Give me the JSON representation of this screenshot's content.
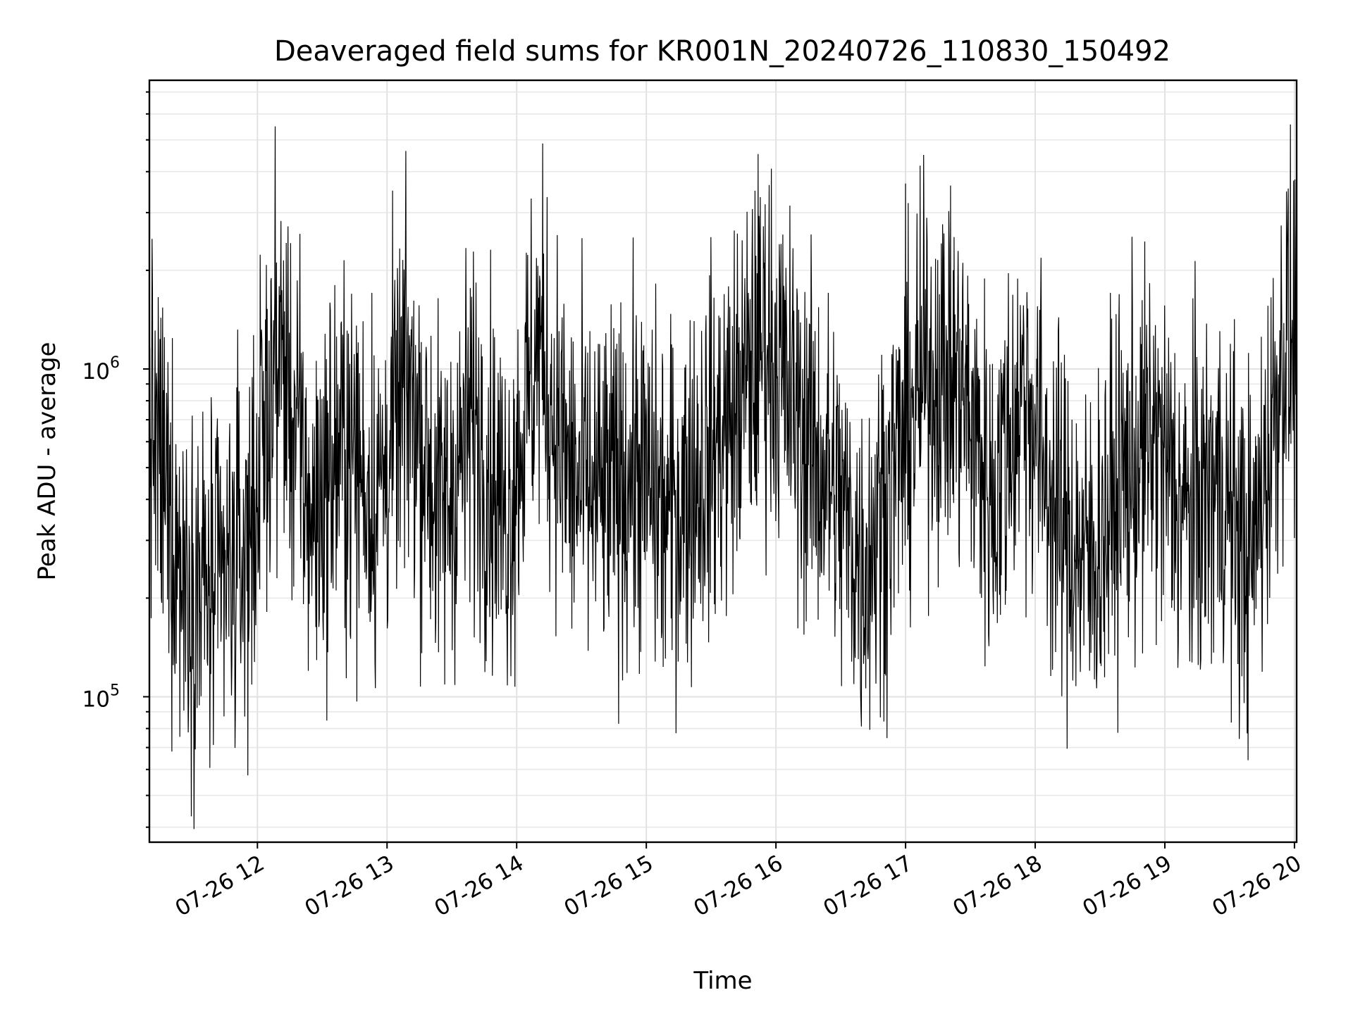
{
  "chart_data": {
    "type": "line",
    "title": "Deaveraged field sums for KR001N_20240726_110830_150492",
    "xlabel": "Time",
    "ylabel": "Peak ADU - average",
    "yscale": "log",
    "xlim": [
      "07-26 11:10",
      "07-26 20:01"
    ],
    "ylim": [
      36000,
      7600000
    ],
    "grid": true,
    "x_ticks": [
      "07-26 12",
      "07-26 13",
      "07-26 14",
      "07-26 15",
      "07-26 16",
      "07-26 17",
      "07-26 18",
      "07-26 19",
      "07-26 20"
    ],
    "y_ticks": [
      {
        "base": "10",
        "exp": "5",
        "value": 100000
      },
      {
        "base": "10",
        "exp": "6",
        "value": 1000000
      }
    ],
    "series": [
      {
        "color": "#000000",
        "x": [
          "07-26 11:10",
          "07-26 11:25",
          "07-26 11:40",
          "07-26 11:55",
          "07-26 12:10",
          "07-26 12:25",
          "07-26 12:40",
          "07-26 12:55",
          "07-26 13:10",
          "07-26 13:25",
          "07-26 13:40",
          "07-26 13:55",
          "07-26 14:10",
          "07-26 14:25",
          "07-26 14:40",
          "07-26 14:55",
          "07-26 15:10",
          "07-26 15:25",
          "07-26 15:40",
          "07-26 15:55",
          "07-26 16:10",
          "07-26 16:25",
          "07-26 16:40",
          "07-26 16:55",
          "07-26 17:10",
          "07-26 17:25",
          "07-26 17:40",
          "07-26 17:55",
          "07-26 18:10",
          "07-26 18:25",
          "07-26 18:40",
          "07-26 18:55",
          "07-26 19:10",
          "07-26 19:25",
          "07-26 19:40",
          "07-26 19:55"
        ],
        "y": [
          700000,
          250000,
          200000,
          280000,
          1200000,
          350000,
          600000,
          400000,
          900000,
          350000,
          700000,
          350000,
          1200000,
          450000,
          400000,
          500000,
          350000,
          500000,
          700000,
          1300000,
          700000,
          450000,
          250000,
          500000,
          1000000,
          900000,
          400000,
          900000,
          350000,
          250000,
          450000,
          600000,
          350000,
          450000,
          250000,
          1200000
        ]
      }
    ]
  }
}
